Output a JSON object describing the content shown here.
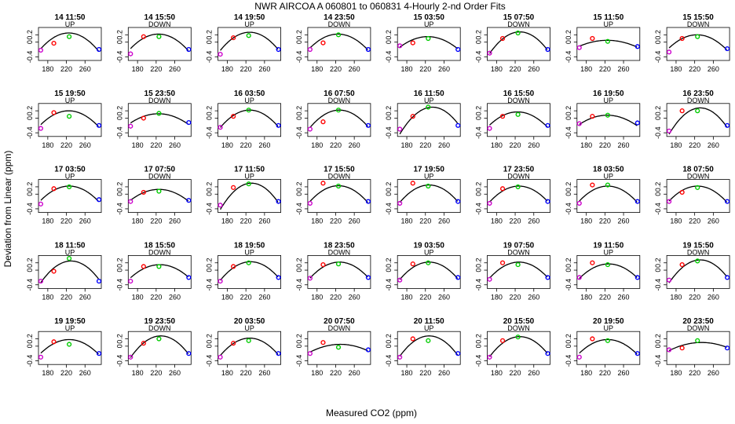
{
  "figure": {
    "title": "NWR   AIRCOA A    060801 to 060831   4-Hourly 2-nd Order Fits",
    "xlabel": "Measured CO2 (ppm)",
    "ylabel": "Deviation from Linear (ppm)"
  },
  "chart_data": {
    "type": "scatter",
    "title": "NWR   AIRCOA A    060801 to 060831   4-Hourly 2-nd Order Fits",
    "xlabel": "Measured CO2 (ppm)",
    "ylabel": "Deviation from Linear (ppm)",
    "layout": "small multiples, 5 rows x 8 columns",
    "xlim": [
      160,
      295
    ],
    "ylim": [
      -0.5,
      0.4
    ],
    "x_ticks": [
      180,
      220,
      260
    ],
    "y_ticks": [
      -0.4,
      0,
      0.2
    ],
    "y_tick_labels": [
      "-0.4",
      "0",
      "0.2"
    ],
    "x_tick_labels": [
      "180",
      "220",
      "260"
    ],
    "colors": {
      "standard_1": "#cc00cc",
      "standard_2": "#ff0000",
      "standard_3": "#00cc00",
      "standard_4": "#0000ff",
      "fit": "#000000"
    },
    "standard_x": [
      165,
      193,
      226,
      290
    ],
    "panels": [
      {
        "title": "14 11:50",
        "dir": "UP",
        "apex_x": 225,
        "apex_y": 0.25,
        "curv": 0.00012,
        "pts": [
          -0.22,
          -0.03,
          0.15,
          -0.2
        ]
      },
      {
        "title": "14 15:50",
        "dir": "DOWN",
        "apex_x": 225,
        "apex_y": 0.22,
        "curv": 0.00011,
        "pts": [
          -0.32,
          0.15,
          0.15,
          -0.2
        ]
      },
      {
        "title": "14 19:50",
        "dir": "UP",
        "apex_x": 228,
        "apex_y": 0.27,
        "curv": 0.000125,
        "pts": [
          -0.33,
          0.12,
          0.18,
          -0.2
        ]
      },
      {
        "title": "14 23:50",
        "dir": "DOWN",
        "apex_x": 225,
        "apex_y": 0.22,
        "curv": 0.000105,
        "pts": [
          -0.2,
          -0.02,
          0.2,
          -0.2
        ]
      },
      {
        "title": "15 03:50",
        "dir": "UP",
        "apex_x": 225,
        "apex_y": 0.15,
        "curv": 8e-05,
        "pts": [
          -0.1,
          -0.02,
          0.1,
          -0.2
        ]
      },
      {
        "title": "15 07:50",
        "dir": "DOWN",
        "apex_x": 230,
        "apex_y": 0.28,
        "curv": 0.00014,
        "pts": [
          -0.3,
          0.1,
          0.25,
          -0.2
        ]
      },
      {
        "title": "15 11:50",
        "dir": "UP",
        "apex_x": 225,
        "apex_y": 0.05,
        "curv": 4.5e-05,
        "pts": [
          -0.15,
          0.1,
          0.02,
          -0.12
        ]
      },
      {
        "title": "15 15:50",
        "dir": "DOWN",
        "apex_x": 225,
        "apex_y": 0.2,
        "curv": 0.0001,
        "pts": [
          -0.27,
          0.1,
          0.15,
          -0.18
        ]
      },
      {
        "title": "15 19:50",
        "dir": "UP",
        "apex_x": 225,
        "apex_y": 0.2,
        "curv": 0.000105,
        "pts": [
          -0.28,
          0.15,
          0.05,
          -0.2
        ]
      },
      {
        "title": "15 23:50",
        "dir": "DOWN",
        "apex_x": 225,
        "apex_y": 0.12,
        "curv": 7e-05,
        "pts": [
          -0.22,
          0.0,
          0.13,
          -0.12
        ]
      },
      {
        "title": "16 03:50",
        "dir": "UP",
        "apex_x": 228,
        "apex_y": 0.22,
        "curv": 0.00012,
        "pts": [
          -0.25,
          0.05,
          0.22,
          -0.2
        ]
      },
      {
        "title": "16 07:50",
        "dir": "DOWN",
        "apex_x": 228,
        "apex_y": 0.22,
        "curv": 0.00012,
        "pts": [
          -0.3,
          -0.1,
          0.22,
          -0.2
        ]
      },
      {
        "title": "16 11:50",
        "dir": "UP",
        "apex_x": 235,
        "apex_y": 0.3,
        "curv": 0.00015,
        "pts": [
          -0.3,
          0.05,
          0.3,
          -0.2
        ]
      },
      {
        "title": "16 15:50",
        "dir": "DOWN",
        "apex_x": 225,
        "apex_y": 0.17,
        "curv": 0.0001,
        "pts": [
          -0.28,
          0.05,
          0.1,
          -0.2
        ]
      },
      {
        "title": "16 19:50",
        "dir": "UP",
        "apex_x": 225,
        "apex_y": 0.08,
        "curv": 7e-05,
        "pts": [
          -0.15,
          0.05,
          0.08,
          -0.13
        ]
      },
      {
        "title": "16 23:50",
        "dir": "DOWN",
        "apex_x": 232,
        "apex_y": 0.28,
        "curv": 0.00016,
        "pts": [
          -0.35,
          0.2,
          0.2,
          -0.2
        ]
      },
      {
        "title": "17 03:50",
        "dir": "UP",
        "apex_x": 226,
        "apex_y": 0.22,
        "curv": 0.000105,
        "pts": [
          -0.27,
          0.15,
          0.2,
          -0.15
        ]
      },
      {
        "title": "17 07:50",
        "dir": "DOWN",
        "apex_x": 226,
        "apex_y": 0.13,
        "curv": 8e-05,
        "pts": [
          -0.2,
          0.05,
          0.08,
          -0.17
        ]
      },
      {
        "title": "17 11:50",
        "dir": "UP",
        "apex_x": 232,
        "apex_y": 0.3,
        "curv": 0.00016,
        "pts": [
          -0.3,
          0.18,
          0.28,
          -0.2
        ]
      },
      {
        "title": "17 15:50",
        "dir": "DOWN",
        "apex_x": 226,
        "apex_y": 0.23,
        "curv": 0.000115,
        "pts": [
          -0.25,
          0.3,
          0.22,
          -0.2
        ]
      },
      {
        "title": "17 19:50",
        "dir": "UP",
        "apex_x": 228,
        "apex_y": 0.25,
        "curv": 0.00012,
        "pts": [
          -0.25,
          0.3,
          0.22,
          -0.2
        ]
      },
      {
        "title": "17 23:50",
        "dir": "DOWN",
        "apex_x": 228,
        "apex_y": 0.22,
        "curv": 0.00011,
        "pts": [
          -0.25,
          0.15,
          0.2,
          -0.2
        ]
      },
      {
        "title": "18 03:50",
        "dir": "UP",
        "apex_x": 226,
        "apex_y": 0.22,
        "curv": 0.00011,
        "pts": [
          -0.25,
          0.25,
          0.25,
          -0.2
        ]
      },
      {
        "title": "18 07:50",
        "dir": "DOWN",
        "apex_x": 226,
        "apex_y": 0.22,
        "curv": 0.00011,
        "pts": [
          -0.2,
          0.05,
          0.18,
          -0.2
        ]
      },
      {
        "title": "18 11:50",
        "dir": "UP",
        "apex_x": 230,
        "apex_y": 0.25,
        "curv": 0.00014,
        "pts": [
          -0.3,
          -0.03,
          0.32,
          -0.3
        ]
      },
      {
        "title": "18 15:50",
        "dir": "DOWN",
        "apex_x": 228,
        "apex_y": 0.15,
        "curv": 9e-05,
        "pts": [
          -0.3,
          0.1,
          0.1,
          -0.2
        ]
      },
      {
        "title": "18 19:50",
        "dir": "UP",
        "apex_x": 230,
        "apex_y": 0.23,
        "curv": 0.00012,
        "pts": [
          -0.3,
          0.1,
          0.2,
          -0.2
        ]
      },
      {
        "title": "18 23:50",
        "dir": "DOWN",
        "apex_x": 228,
        "apex_y": 0.22,
        "curv": 0.00011,
        "pts": [
          -0.22,
          0.15,
          0.17,
          -0.2
        ]
      },
      {
        "title": "19 03:50",
        "dir": "UP",
        "apex_x": 228,
        "apex_y": 0.22,
        "curv": 0.00012,
        "pts": [
          -0.27,
          0.17,
          0.2,
          -0.2
        ]
      },
      {
        "title": "19 07:50",
        "dir": "DOWN",
        "apex_x": 228,
        "apex_y": 0.22,
        "curv": 0.00011,
        "pts": [
          -0.25,
          0.2,
          0.15,
          -0.2
        ]
      },
      {
        "title": "19 11:50",
        "dir": "UP",
        "apex_x": 228,
        "apex_y": 0.17,
        "curv": 0.0001,
        "pts": [
          -0.2,
          0.2,
          0.15,
          -0.2
        ]
      },
      {
        "title": "19 15:50",
        "dir": "DOWN",
        "apex_x": 232,
        "apex_y": 0.28,
        "curv": 0.00014,
        "pts": [
          -0.27,
          0.15,
          0.25,
          -0.2
        ]
      },
      {
        "title": "19 19:50",
        "dir": "UP",
        "apex_x": 226,
        "apex_y": 0.18,
        "curv": 0.0001,
        "pts": [
          -0.3,
          0.12,
          0.05,
          -0.2
        ]
      },
      {
        "title": "19 23:50",
        "dir": "DOWN",
        "apex_x": 230,
        "apex_y": 0.28,
        "curv": 0.00014,
        "pts": [
          -0.3,
          0.08,
          0.2,
          -0.2
        ]
      },
      {
        "title": "20 03:50",
        "dir": "UP",
        "apex_x": 228,
        "apex_y": 0.22,
        "curv": 0.00012,
        "pts": [
          -0.3,
          0.08,
          0.15,
          -0.2
        ]
      },
      {
        "title": "20 07:50",
        "dir": "DOWN",
        "apex_x": 230,
        "apex_y": 0.05,
        "curv": 5e-05,
        "pts": [
          -0.2,
          0.1,
          -0.03,
          -0.1
        ]
      },
      {
        "title": "20 11:50",
        "dir": "UP",
        "apex_x": 228,
        "apex_y": 0.28,
        "curv": 0.00014,
        "pts": [
          -0.3,
          0.2,
          0.15,
          -0.2
        ]
      },
      {
        "title": "20 15:50",
        "dir": "DOWN",
        "apex_x": 230,
        "apex_y": 0.26,
        "curv": 0.00013,
        "pts": [
          -0.3,
          0.15,
          0.25,
          -0.2
        ]
      },
      {
        "title": "20 19:50",
        "dir": "UP",
        "apex_x": 226,
        "apex_y": 0.18,
        "curv": 0.0001,
        "pts": [
          -0.3,
          0.2,
          0.15,
          -0.2
        ]
      },
      {
        "title": "20 23:50",
        "dir": "DOWN",
        "apex_x": 235,
        "apex_y": 0.1,
        "curv": 4.5e-05,
        "pts": [
          -0.1,
          -0.05,
          0.15,
          -0.05
        ]
      }
    ]
  }
}
